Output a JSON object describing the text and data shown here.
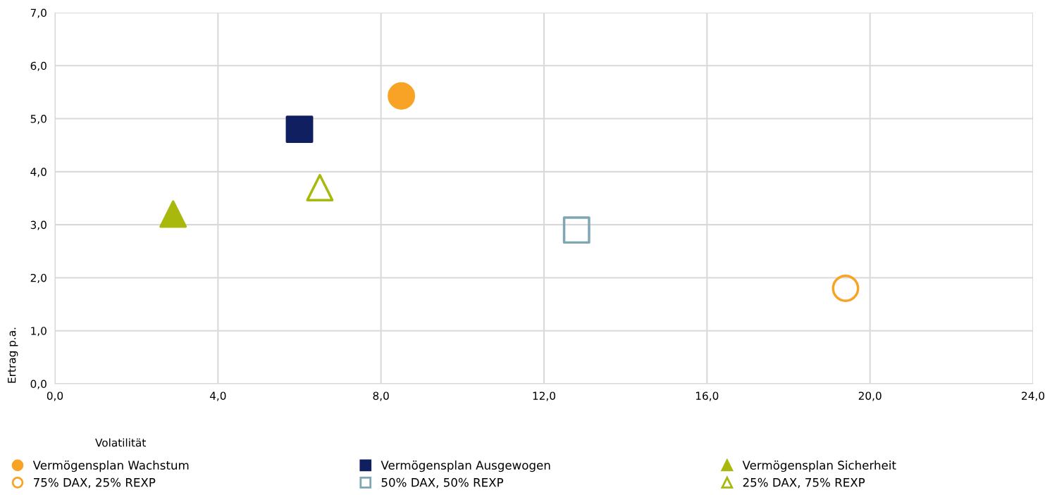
{
  "chart_data": {
    "type": "scatter",
    "xlabel": "Volatilität",
    "ylabel": "Ertrag p.a.",
    "xlim": [
      0,
      24
    ],
    "ylim": [
      0,
      7
    ],
    "xticks": [
      {
        "value": 0,
        "label": "0,0"
      },
      {
        "value": 4,
        "label": "4,0"
      },
      {
        "value": 8,
        "label": "8,0"
      },
      {
        "value": 12,
        "label": "12,0"
      },
      {
        "value": 16,
        "label": "16,0"
      },
      {
        "value": 20,
        "label": "20,0"
      },
      {
        "value": 24,
        "label": "24,0"
      }
    ],
    "yticks": [
      {
        "value": 0,
        "label": "0,0"
      },
      {
        "value": 1,
        "label": "1,0"
      },
      {
        "value": 2,
        "label": "2,0"
      },
      {
        "value": 3,
        "label": "3,0"
      },
      {
        "value": 4,
        "label": "4,0"
      },
      {
        "value": 5,
        "label": "5,0"
      },
      {
        "value": 6,
        "label": "6,0"
      },
      {
        "value": 7,
        "label": "7,0"
      }
    ],
    "grid": true,
    "legend": "bottom",
    "series": [
      {
        "name": "Vermögensplan Wachstum",
        "color": "#f8a325",
        "marker": "circle",
        "x": [
          8.5
        ],
        "values": [
          5.43
        ]
      },
      {
        "name": "75% DAX, 25% REXP",
        "color": "#f8a325",
        "marker": "circle",
        "x": [
          19.4
        ],
        "values": [
          1.8
        ]
      },
      {
        "name": "Vermögensplan Ausgewogen",
        "color": "#0f1f5f",
        "marker": "square",
        "x": [
          6.0
        ],
        "values": [
          4.8
        ]
      },
      {
        "name": "50% DAX, 50% REXP",
        "color": "#7fa6b3",
        "marker": "square",
        "x": [
          12.8
        ],
        "values": [
          2.9
        ]
      },
      {
        "name": "Vermögensplan Sicherheit",
        "color": "#a8b80c",
        "marker": "triangle",
        "x": [
          2.9
        ],
        "values": [
          3.2
        ]
      },
      {
        "name": "25% DAX, 75% REXP",
        "color": "#a8b80c",
        "marker": "triangle",
        "x": [
          6.5
        ],
        "values": [
          3.7
        ]
      }
    ]
  }
}
